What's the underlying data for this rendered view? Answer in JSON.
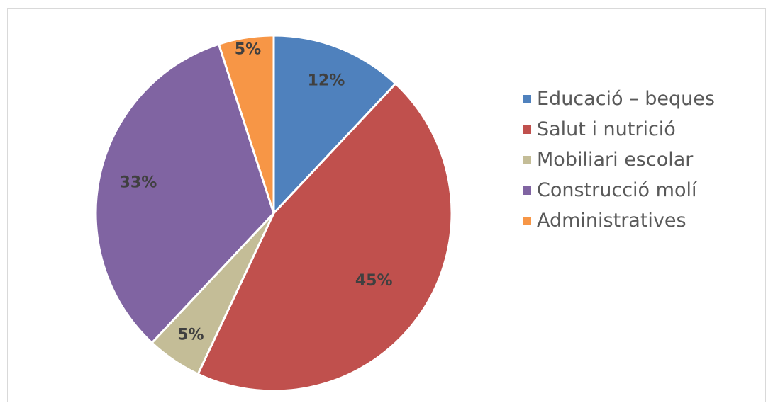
{
  "chart_data": {
    "type": "pie",
    "start_angle_deg": 0,
    "direction": "clockwise",
    "legend_position": "right",
    "slices": [
      {
        "label": "Educació – beques",
        "value": 12,
        "display": "12%",
        "color": "#4f81bd"
      },
      {
        "label": "Salut i nutrició",
        "value": 45,
        "display": "45%",
        "color": "#c0504d"
      },
      {
        "label": "Mobiliari escolar",
        "value": 5,
        "display": "5%",
        "color": "#c4bd97"
      },
      {
        "label": "Construcció molí",
        "value": 33,
        "display": "33%",
        "color": "#8064a2"
      },
      {
        "label": "Administratives",
        "value": 5,
        "display": "5%",
        "color": "#f79646"
      }
    ]
  }
}
